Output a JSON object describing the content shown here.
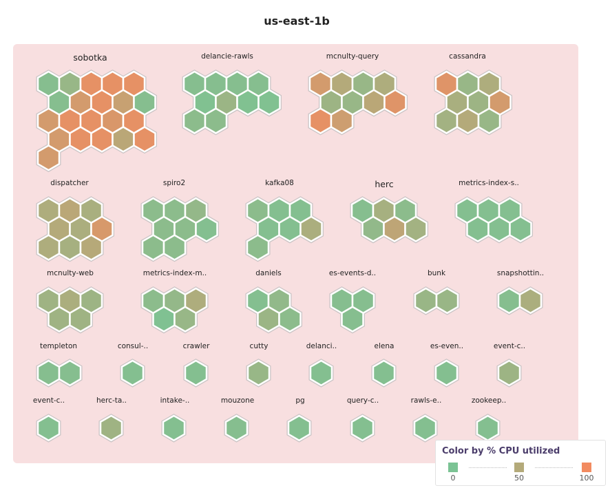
{
  "title": "us-east-1b",
  "legend": {
    "title": "Color by % CPU utilized",
    "stops": [
      {
        "value": "0",
        "color": "#7bc394"
      },
      {
        "value": "50",
        "color": "#b4aa7a"
      },
      {
        "value": "100",
        "color": "#f28b60"
      }
    ]
  },
  "groups": [
    {
      "name": "sobotka",
      "cpu": [
        [
          10,
          25,
          90,
          90,
          90
        ],
        [
          10,
          75,
          90,
          65,
          10
        ],
        [
          75,
          90,
          90,
          80,
          90
        ],
        [
          75,
          90,
          90,
          55,
          90
        ],
        [
          75
        ]
      ]
    },
    {
      "name": "delancie-rawls",
      "cpu": [
        [
          10,
          10,
          10,
          10
        ],
        [
          5,
          28,
          5,
          5
        ],
        [
          15,
          15
        ]
      ]
    },
    {
      "name": "mcnulty-query",
      "cpu": [
        [
          75,
          50,
          25,
          45
        ],
        [
          30,
          25,
          55,
          85
        ],
        [
          90,
          70
        ]
      ]
    },
    {
      "name": "cassandra",
      "cpu": [
        [
          85,
          25,
          45
        ],
        [
          40,
          30,
          75
        ],
        [
          35,
          50,
          25
        ]
      ]
    },
    {
      "name": "dispatcher",
      "cpu": [
        [
          45,
          55,
          40
        ],
        [
          50,
          42,
          78
        ],
        [
          45,
          38,
          52
        ]
      ]
    },
    {
      "name": "spiro2",
      "cpu": [
        [
          15,
          15,
          22
        ],
        [
          15,
          15,
          8
        ],
        [
          15,
          15
        ]
      ]
    },
    {
      "name": "kafka08",
      "cpu": [
        [
          15,
          8,
          8
        ],
        [
          8,
          8,
          42
        ],
        [
          15
        ]
      ]
    },
    {
      "name": "herc",
      "cpu": [
        [
          10,
          38,
          15
        ],
        [
          20,
          58,
          35
        ]
      ]
    },
    {
      "name": "metrics-index-s..",
      "cpu": [
        [
          8,
          8,
          8
        ],
        [
          8,
          8,
          8
        ]
      ]
    },
    {
      "name": "mcnulty-web",
      "cpu": [
        [
          32,
          42,
          30
        ],
        [
          32,
          32
        ]
      ]
    },
    {
      "name": "metrics-index-m..",
      "cpu": [
        [
          15,
          22,
          45
        ],
        [
          4,
          25
        ]
      ]
    },
    {
      "name": "daniels",
      "cpu": [
        [
          8,
          20
        ],
        [
          28,
          15
        ]
      ]
    },
    {
      "name": "es-events-d..",
      "cpu": [
        [
          10,
          10
        ],
        [
          10
        ]
      ]
    },
    {
      "name": "bunk",
      "cpu": [
        [
          26,
          26
        ]
      ]
    },
    {
      "name": "snapshottin..",
      "cpu": [
        [
          10,
          42
        ]
      ]
    },
    {
      "name": "templeton",
      "cpu": [
        [
          10,
          10
        ]
      ]
    },
    {
      "name": "consul-..",
      "cpu": [
        [
          8
        ]
      ]
    },
    {
      "name": "crawler",
      "cpu": [
        [
          8
        ]
      ]
    },
    {
      "name": "cutty",
      "cpu": [
        [
          25
        ]
      ]
    },
    {
      "name": "delanci..",
      "cpu": [
        [
          8
        ]
      ]
    },
    {
      "name": "elena",
      "cpu": [
        [
          8
        ]
      ]
    },
    {
      "name": "es-even..",
      "cpu": [
        [
          8
        ]
      ]
    },
    {
      "name": "event-c..",
      "cpu": [
        [
          30
        ]
      ]
    },
    {
      "name": "event-c..",
      "cpu": [
        [
          8
        ]
      ]
    },
    {
      "name": "herc-ta..",
      "cpu": [
        [
          32
        ]
      ]
    },
    {
      "name": "intake-..",
      "cpu": [
        [
          8
        ]
      ]
    },
    {
      "name": "mouzone",
      "cpu": [
        [
          10
        ]
      ]
    },
    {
      "name": "pg",
      "cpu": [
        [
          8
        ]
      ]
    },
    {
      "name": "query-c..",
      "cpu": [
        [
          8
        ]
      ]
    },
    {
      "name": "rawls-e..",
      "cpu": [
        [
          8
        ]
      ]
    },
    {
      "name": "zookeep..",
      "cpu": [
        [
          8
        ]
      ]
    }
  ]
}
